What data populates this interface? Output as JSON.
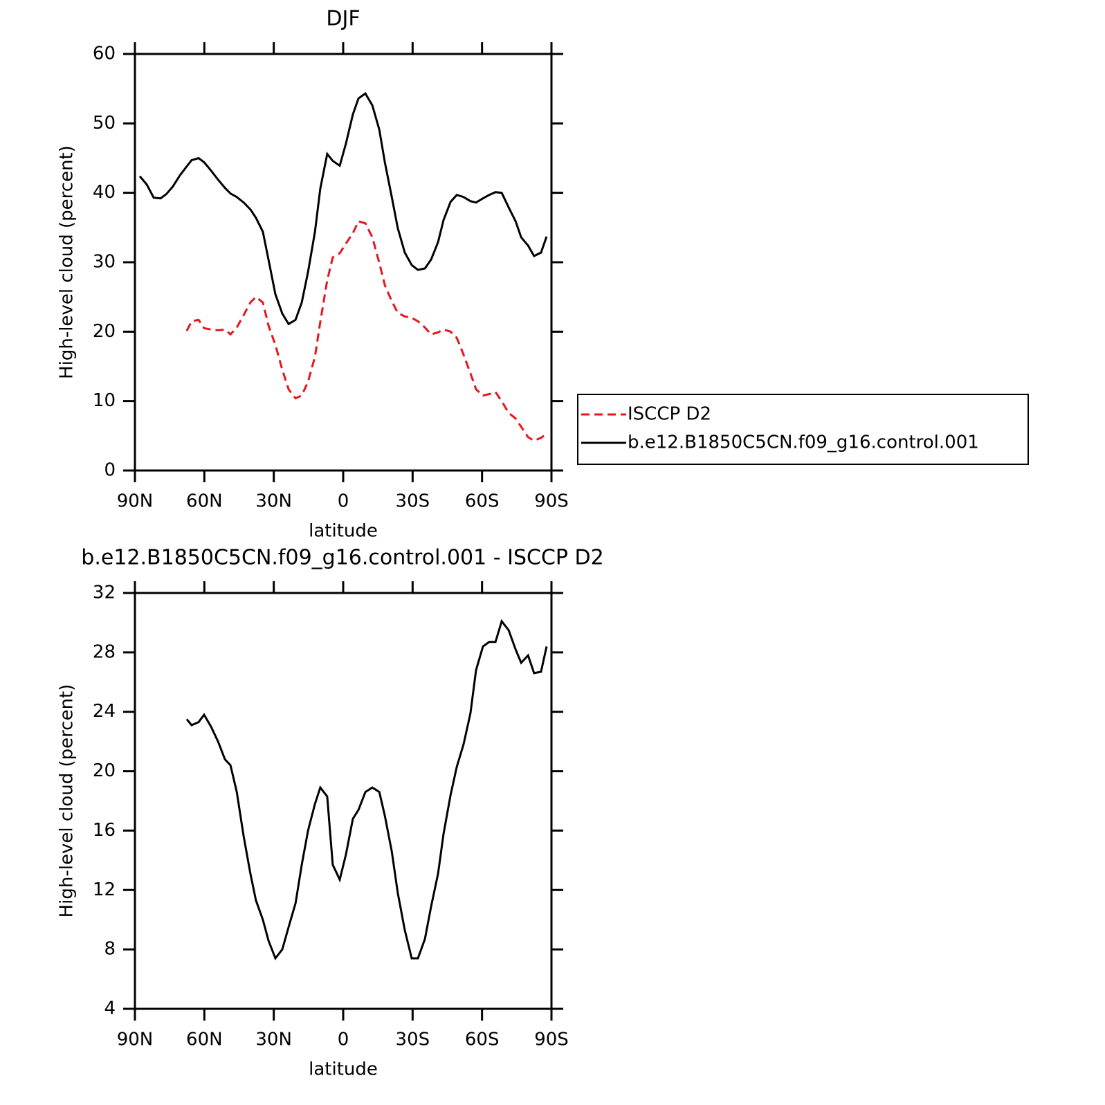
{
  "chart_data": [
    {
      "type": "line",
      "title": "DJF",
      "xlabel": "latitude",
      "ylabel": "High-level cloud (percent)",
      "x": [
        87.9,
        84.9,
        81.9,
        78.9,
        76.5,
        73.6,
        70.6,
        67.6,
        65.5,
        62.5,
        60.1,
        57.1,
        54.1,
        51.1,
        48.7,
        46.0,
        43.0,
        40.1,
        37.7,
        34.7,
        32.3,
        29.3,
        26.3,
        23.6,
        20.6,
        17.9,
        15.2,
        12.2,
        9.9,
        6.9,
        4.5,
        1.5,
        -1.2,
        -4.2,
        -6.6,
        -9.6,
        -12.6,
        -15.6,
        -18.0,
        -21.0,
        -23.6,
        -26.6,
        -29.6,
        -32.3,
        -35.3,
        -38.0,
        -41.0,
        -43.4,
        -46.4,
        -49.1,
        -52.0,
        -55.0,
        -57.4,
        -60.4,
        -63.1,
        -65.8,
        -68.5,
        -71.5,
        -74.5,
        -76.9,
        -79.9,
        -82.5,
        -85.5,
        -87.9
      ],
      "series": [
        {
          "name": "ISCCP D2",
          "color": "#e8141b",
          "line_style": "dashed",
          "values": [
            null,
            null,
            null,
            null,
            null,
            null,
            null,
            20.1,
            21.5,
            21.7,
            20.5,
            20.3,
            20.2,
            20.3,
            19.6,
            20.6,
            22.4,
            24.2,
            25.0,
            24.2,
            20.9,
            18.1,
            14.5,
            11.7,
            10.4,
            10.8,
            12.8,
            16.4,
            21.4,
            27.4,
            30.7,
            31.3,
            32.7,
            34.2,
            35.9,
            35.6,
            33.6,
            29.9,
            26.7,
            24.4,
            22.7,
            22.2,
            22.0,
            21.5,
            20.6,
            19.6,
            19.9,
            20.3,
            20.0,
            19.1,
            16.7,
            14.0,
            11.7,
            10.8,
            11.0,
            11.3,
            10.0,
            8.3,
            7.5,
            6.3,
            4.8,
            4.3,
            4.7,
            5.3
          ]
        },
        {
          "name": "b.e12.B1850C5CN.f09_g16.control.001",
          "color": "#000000",
          "line_style": "solid",
          "values": [
            42.4,
            41.2,
            39.3,
            39.2,
            39.8,
            40.9,
            42.5,
            43.8,
            44.7,
            45.0,
            44.4,
            43.2,
            41.9,
            40.7,
            39.9,
            39.4,
            38.6,
            37.6,
            36.4,
            34.4,
            30.4,
            25.4,
            22.6,
            21.1,
            21.7,
            24.2,
            28.6,
            34.4,
            40.6,
            45.6,
            44.6,
            43.9,
            47.1,
            51.3,
            53.6,
            54.3,
            52.6,
            49.1,
            44.4,
            39.4,
            34.9,
            31.4,
            29.6,
            28.9,
            29.1,
            30.4,
            32.9,
            36.1,
            38.7,
            39.7,
            39.4,
            38.8,
            38.6,
            39.2,
            39.7,
            40.1,
            40.0,
            37.9,
            35.9,
            33.6,
            32.4,
            30.9,
            31.4,
            33.7
          ]
        }
      ],
      "xlim": [
        90,
        -90
      ],
      "xticks": [
        {
          "value": 90,
          "label": "90N"
        },
        {
          "value": 60,
          "label": "60N"
        },
        {
          "value": 30,
          "label": "30N"
        },
        0,
        {
          "value": -30,
          "label": "30S"
        },
        {
          "value": -60,
          "label": "60S"
        },
        {
          "value": -90,
          "label": "90S"
        }
      ],
      "ylim": [
        0,
        60
      ],
      "yticks": [
        0,
        10,
        20,
        30,
        40,
        50,
        60
      ],
      "legend": "right"
    },
    {
      "type": "line",
      "title": "b.e12.B1850C5CN.f09_g16.control.001 - ISCCP D2",
      "xlabel": "latitude",
      "ylabel": "High-level cloud (percent)",
      "x": [
        87.9,
        84.9,
        81.9,
        78.9,
        76.5,
        73.6,
        70.6,
        67.6,
        65.5,
        62.5,
        60.1,
        57.1,
        54.1,
        51.1,
        48.7,
        46.0,
        43.0,
        40.1,
        37.7,
        34.7,
        32.3,
        29.3,
        26.3,
        23.6,
        20.6,
        17.9,
        15.2,
        12.2,
        9.9,
        6.9,
        4.5,
        1.5,
        -1.2,
        -4.2,
        -6.6,
        -9.6,
        -12.6,
        -15.6,
        -18.0,
        -21.0,
        -23.6,
        -26.6,
        -29.6,
        -32.3,
        -35.3,
        -38.0,
        -41.0,
        -43.4,
        -46.4,
        -49.1,
        -52.0,
        -55.0,
        -57.4,
        -60.4,
        -63.1,
        -65.8,
        -68.5,
        -71.5,
        -74.5,
        -76.9,
        -79.9,
        -82.5,
        -85.5,
        -87.9
      ],
      "series": [
        {
          "color": "#000000",
          "line_style": "solid",
          "values": [
            null,
            null,
            null,
            null,
            null,
            null,
            null,
            23.5,
            23.1,
            23.3,
            23.8,
            23.0,
            22.0,
            20.8,
            20.4,
            18.6,
            15.6,
            13.1,
            11.3,
            10.0,
            8.6,
            7.4,
            8.0,
            9.5,
            11.1,
            13.7,
            16.0,
            17.8,
            18.9,
            18.3,
            13.7,
            12.7,
            14.4,
            16.8,
            17.4,
            18.6,
            18.9,
            18.6,
            17.0,
            14.6,
            11.8,
            9.3,
            7.4,
            7.4,
            8.7,
            10.9,
            13.1,
            15.8,
            18.4,
            20.3,
            21.8,
            23.9,
            26.8,
            28.4,
            28.7,
            28.7,
            30.1,
            29.5,
            28.2,
            27.3,
            27.8,
            26.6,
            26.7,
            28.4
          ]
        }
      ],
      "xlim": [
        90,
        -90
      ],
      "xticks": [
        {
          "value": 90,
          "label": "90N"
        },
        {
          "value": 60,
          "label": "60N"
        },
        {
          "value": 30,
          "label": "30N"
        },
        0,
        {
          "value": -30,
          "label": "30S"
        },
        {
          "value": -60,
          "label": "60S"
        },
        {
          "value": -90,
          "label": "90S"
        }
      ],
      "ylim": [
        4,
        32
      ],
      "yticks": [
        4,
        8,
        12,
        16,
        20,
        24,
        28,
        32
      ]
    }
  ]
}
